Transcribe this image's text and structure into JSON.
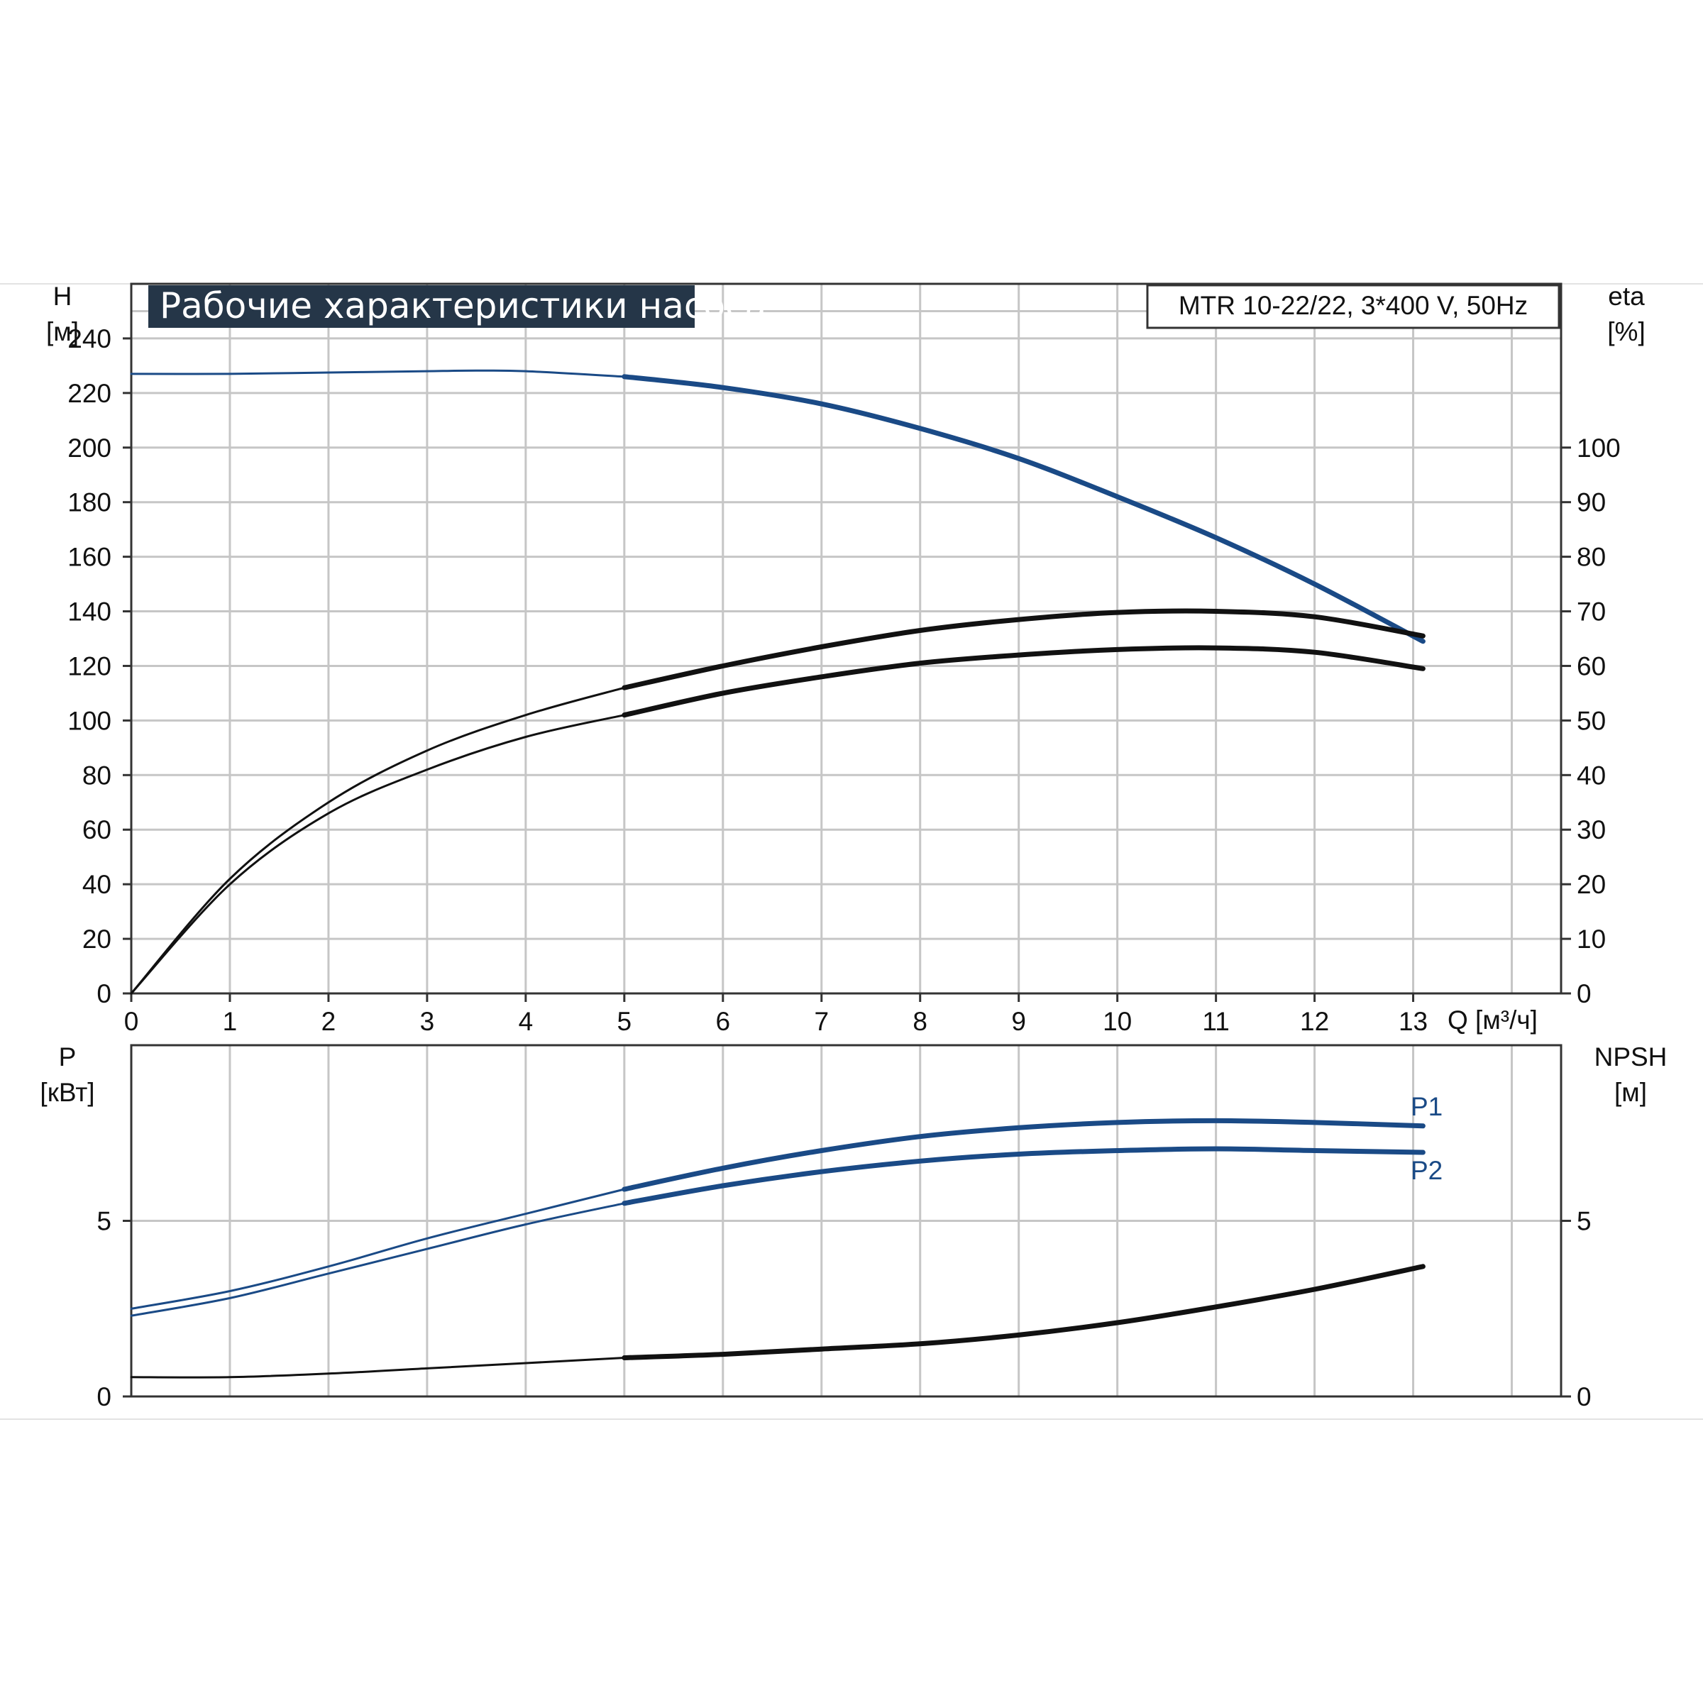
{
  "colors": {
    "blue": "#1a4a86",
    "black": "#111111",
    "grid": "#c6c6c6",
    "title_bg": "#253648"
  },
  "chart_data": [
    {
      "type": "line",
      "title": "Рабочие характеристики насоса",
      "subtitle": "MTR 10-22/22, 3*400 V, 50Hz",
      "xlabel": "Q [м³/ч]",
      "ylabel": [
        "H",
        "[м]"
      ],
      "y2label": [
        "eta",
        "[%]"
      ],
      "xlim": [
        0,
        14.5
      ],
      "ylim": [
        0,
        260
      ],
      "y2lim": [
        0,
        130
      ],
      "grid": true,
      "x_ticks": [
        "0",
        "1",
        "2",
        "3",
        "4",
        "5",
        "6",
        "7",
        "8",
        "9",
        "10",
        "11",
        "12",
        "13"
      ],
      "y_ticks": [
        "0",
        "20",
        "40",
        "60",
        "80",
        "100",
        "120",
        "140",
        "160",
        "180",
        "200",
        "220",
        "240"
      ],
      "y2_ticks": [
        "0",
        "10",
        "20",
        "30",
        "40",
        "50",
        "60",
        "70",
        "80",
        "90",
        "100"
      ],
      "series": [
        {
          "axis": "left",
          "color": "#1a4a86",
          "x": [
            0,
            1,
            2,
            3,
            3.5,
            4,
            5,
            6,
            7,
            8,
            9,
            10,
            11,
            12,
            13.1
          ],
          "values": [
            227,
            227,
            227.5,
            228,
            228.2,
            228,
            226,
            222,
            216,
            207,
            196,
            182,
            167,
            150,
            129
          ]
        },
        {
          "axis": "right",
          "x": [
            0,
            1,
            2,
            3,
            4,
            5,
            6,
            7,
            8,
            9,
            10,
            11,
            12,
            13.1
          ],
          "values": [
            0,
            21,
            35,
            44.5,
            51,
            56,
            60,
            63.5,
            66.5,
            68.5,
            69.8,
            70,
            69,
            65.5
          ]
        },
        {
          "axis": "right",
          "x": [
            0,
            1,
            2,
            3,
            4,
            5,
            6,
            7,
            8,
            9,
            10,
            11,
            12,
            13.1
          ],
          "values": [
            0,
            20,
            33,
            41,
            47,
            51,
            55,
            58,
            60.5,
            62,
            63,
            63.3,
            62.5,
            59.5
          ]
        }
      ]
    },
    {
      "type": "line",
      "ylabel": [
        "P",
        "[кВт]"
      ],
      "y2label": [
        "NPSH",
        "[м]"
      ],
      "xlim": [
        0,
        14.5
      ],
      "ylim": [
        0,
        10
      ],
      "y2lim": [
        0,
        10
      ],
      "grid": true,
      "y_ticks": [
        "0",
        "5"
      ],
      "y2_ticks": [
        "0",
        "5"
      ],
      "series": [
        {
          "name": "P1",
          "axis": "left",
          "color": "#1a4a86",
          "x": [
            0,
            1,
            2,
            3,
            4,
            5,
            6,
            7,
            8,
            9,
            10,
            11,
            12,
            13.1
          ],
          "values": [
            2.5,
            3.0,
            3.7,
            4.5,
            5.2,
            5.9,
            6.5,
            7.0,
            7.4,
            7.65,
            7.8,
            7.85,
            7.8,
            7.7
          ]
        },
        {
          "name": "P2",
          "axis": "left",
          "color": "#1a4a86",
          "x": [
            0,
            1,
            2,
            3,
            4,
            5,
            6,
            7,
            8,
            9,
            10,
            11,
            12,
            13.1
          ],
          "values": [
            2.3,
            2.8,
            3.5,
            4.2,
            4.9,
            5.5,
            6.0,
            6.4,
            6.7,
            6.9,
            7.0,
            7.05,
            7.0,
            6.95
          ]
        },
        {
          "axis": "right",
          "color": "#111111",
          "x": [
            0,
            1,
            2,
            3,
            4,
            5,
            6,
            7,
            8,
            9,
            10,
            11,
            12,
            13.1
          ],
          "values": [
            0.55,
            0.55,
            0.65,
            0.8,
            0.95,
            1.1,
            1.2,
            1.35,
            1.5,
            1.75,
            2.1,
            2.55,
            3.05,
            3.7
          ]
        }
      ]
    }
  ]
}
